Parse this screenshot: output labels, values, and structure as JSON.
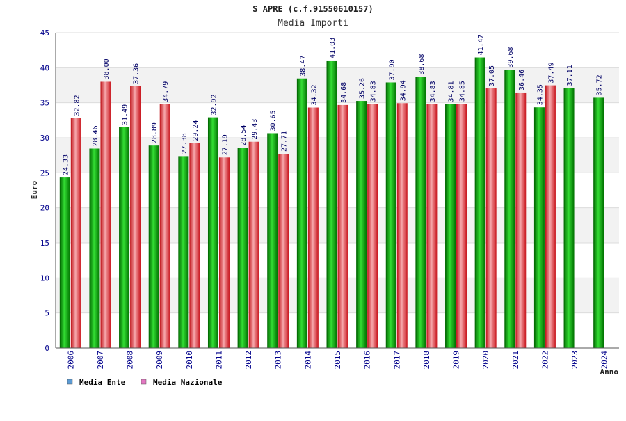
{
  "chart_data": {
    "type": "bar",
    "title": "S APRE (c.f.91550610157)",
    "subtitle": "Media Importi",
    "ylabel": "Euro",
    "xlabel": "Anno",
    "ylim": [
      0,
      45
    ],
    "yticks": [
      0,
      5,
      10,
      15,
      20,
      25,
      30,
      35,
      40,
      45
    ],
    "categories": [
      "2006",
      "2007",
      "2008",
      "2009",
      "2010",
      "2011",
      "2012",
      "2013",
      "2014",
      "2015",
      "2016",
      "2017",
      "2018",
      "2019",
      "2020",
      "2021",
      "2022",
      "2023",
      "2024"
    ],
    "series": [
      {
        "name": "Media Ente",
        "color": "#00a000",
        "values": [
          24.33,
          28.46,
          31.49,
          28.89,
          27.38,
          32.92,
          28.54,
          30.65,
          38.47,
          41.03,
          35.26,
          37.9,
          38.68,
          34.81,
          41.47,
          39.68,
          34.35,
          37.11,
          35.72
        ],
        "labels": [
          "24.33",
          "28.46",
          "31.49",
          "28.89",
          "27.38",
          "32.92",
          "28.54",
          "30.65",
          "38.47",
          "41.03",
          "35.26",
          "37.90",
          "38.68",
          "34.81",
          "41.47",
          "39.68",
          "34.35",
          "37.11",
          "35.72"
        ]
      },
      {
        "name": "Media Nazionale",
        "color": "#e03030",
        "values": [
          32.82,
          38.0,
          37.36,
          34.79,
          29.24,
          27.19,
          29.43,
          27.71,
          34.32,
          34.68,
          34.83,
          34.94,
          34.83,
          34.85,
          37.05,
          36.46,
          37.49,
          null,
          null
        ],
        "labels": [
          "32.82",
          "38.00",
          "37.36",
          "34.79",
          "29.24",
          "27.19",
          "29.43",
          "27.71",
          "34.32",
          "34.68",
          "34.83",
          "34.94",
          "34.83",
          "34.85",
          "37.05",
          "36.46",
          "37.49",
          null,
          null
        ]
      }
    ],
    "legend": [
      {
        "label": "Media Ente",
        "swatch_color": "#5b9bd5"
      },
      {
        "label": "Media Nazionale",
        "swatch_color": "#e377c2"
      }
    ],
    "grid": true,
    "legend_position": "bottom-left"
  }
}
